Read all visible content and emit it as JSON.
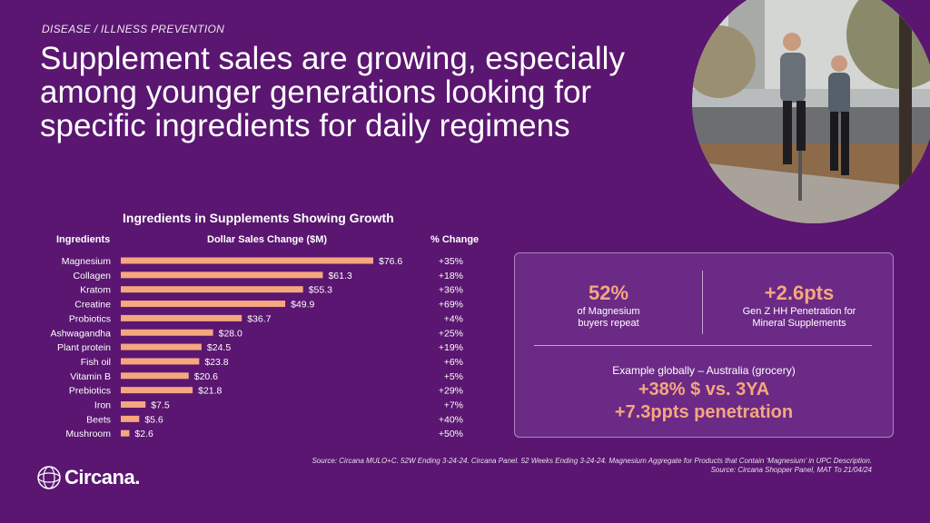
{
  "header": {
    "eyebrow": "DISEASE / ILLNESS PREVENTION",
    "headline": "Supplement sales are growing, especially among younger generations looking for specific ingredients for daily regimens"
  },
  "chart_data": {
    "type": "bar",
    "orientation": "horizontal",
    "title": "Ingredients in Supplements Showing Growth",
    "category_header": "Ingredients",
    "value_header": "Dollar Sales Change ($M)",
    "change_header": "% Change",
    "categories": [
      "Magnesium",
      "Collagen",
      "Kratom",
      "Creatine",
      "Probiotics",
      "Ashwagandha",
      "Plant protein",
      "Fish oil",
      "Vitamin B",
      "Prebiotics",
      "Iron",
      "Beets",
      "Mushroom"
    ],
    "values": [
      76.6,
      61.3,
      55.3,
      49.9,
      36.7,
      28.0,
      24.5,
      23.8,
      20.6,
      21.8,
      7.5,
      5.6,
      2.6
    ],
    "value_labels": [
      "$76.6",
      "$61.3",
      "$55.3",
      "$49.9",
      "$36.7",
      "$28.0",
      "$24.5",
      "$23.8",
      "$20.6",
      "$21.8",
      "$7.5",
      "$5.6",
      "$2.6"
    ],
    "pct_change": [
      "+35%",
      "+18%",
      "+36%",
      "+69%",
      "+4%",
      "+25%",
      "+19%",
      "+6%",
      "+5%",
      "+29%",
      "+7%",
      "+40%",
      "+50%"
    ],
    "xlim": [
      0,
      80
    ],
    "bar_color": "#f5a77e",
    "grid": false
  },
  "panel": {
    "kpi1_value": "52%",
    "kpi1_line1": "of Magnesium",
    "kpi1_line2": "buyers repeat",
    "kpi2_value": "+2.6pts",
    "kpi2_line1": "Gen Z HH Penetration for",
    "kpi2_line2": "Mineral Supplements",
    "example_label": "Example globally – Australia (grocery)",
    "example_stat1": "+38% $ vs. 3YA",
    "example_stat2": "+7.3ppts penetration"
  },
  "footer": {
    "source1": "Source: Circana MULO+C. 52W Ending 3-24-24. Circana Panel. 52 Weeks Ending 3-24-24. Magnesium Aggregate for Products that Contain ‘Magnesium’ in UPC Description.",
    "source2": "Source: Circana Shopper Panel, MAT To 21/04/24",
    "logo_text": "Circana."
  },
  "colors": {
    "background": "#5a1670",
    "accent": "#f5a77e",
    "panel": "#6b2a85"
  },
  "icons": {
    "logo": "circana-globe-icon",
    "photo": "runners-photo"
  }
}
